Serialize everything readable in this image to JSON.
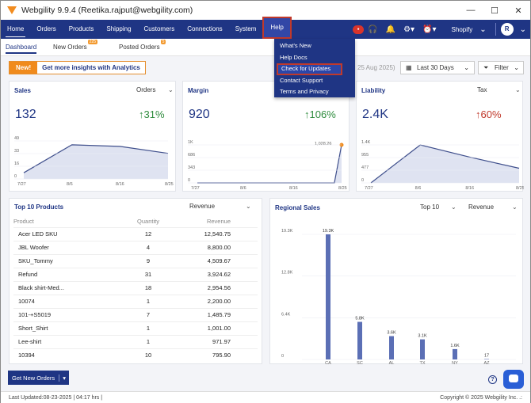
{
  "window": {
    "title": "Webgility 9.9.4 (Reetika.rajput@webgility.com)",
    "minimize": "—",
    "maximize": "☐",
    "close": "✕"
  },
  "nav": {
    "items": [
      "Home",
      "Orders",
      "Products",
      "Shipping",
      "Customers",
      "Connections",
      "System",
      "Help"
    ],
    "store": "Shopify",
    "avatar": "R"
  },
  "help_menu": [
    "What's New",
    "Help Docs",
    "Check for Updates",
    "Contact Support",
    "Terms and Privacy"
  ],
  "subtabs": {
    "dashboard": "Dashboard",
    "new_orders": "New Orders",
    "new_orders_count": "225",
    "posted_orders": "Posted Orders",
    "posted_orders_count": "5"
  },
  "promo": {
    "tag": "New!",
    "text": "Get more insights with Analytics"
  },
  "date_fragment": "25 Aug 2025)",
  "date_range": "Last 30 Days",
  "filter": "Filter",
  "cards": {
    "sales": {
      "title": "Sales",
      "select": "Orders",
      "value": "132",
      "delta": "31%",
      "direction": "up"
    },
    "margin": {
      "title": "Margin",
      "value": "920",
      "delta": "106%",
      "direction": "up",
      "point_label": "1,028.26"
    },
    "liability": {
      "title": "Liability",
      "select": "Tax",
      "value": "2.4K",
      "delta": "60%",
      "direction": "down"
    }
  },
  "chart_data": [
    {
      "type": "area",
      "title": "Sales",
      "x_ticks": [
        "7/27",
        "8/6",
        "8/16",
        "8/25"
      ],
      "y_ticks": [
        "49",
        "33",
        "16",
        "0"
      ],
      "values": [
        8,
        44,
        42,
        33
      ]
    },
    {
      "type": "area",
      "title": "Margin",
      "x_ticks": [
        "7/27",
        "8/6",
        "8/16",
        "8/25"
      ],
      "y_ticks": [
        "1K",
        "686",
        "343",
        "0"
      ],
      "values": [
        0,
        0,
        0,
        0,
        0,
        0,
        0,
        0,
        0,
        0,
        0,
        0,
        0,
        0,
        0,
        0,
        0,
        0,
        0,
        0,
        1028.26
      ]
    },
    {
      "type": "area",
      "title": "Liability",
      "x_ticks": [
        "7/27",
        "8/6",
        "8/16",
        "8/25"
      ],
      "y_ticks": [
        "1.4K",
        "955",
        "477",
        "0"
      ],
      "values": [
        0,
        1400,
        950,
        540
      ]
    },
    {
      "type": "bar",
      "title": "Regional Sales",
      "categories": [
        "CA",
        "SC",
        "AL",
        "TX",
        "NY",
        "AZ"
      ],
      "values": [
        19300,
        5800,
        3600,
        3100,
        1600,
        17
      ],
      "value_labels": [
        "19.3K",
        "5.8K",
        "3.6K",
        "3.1K",
        "1.6K",
        "17"
      ],
      "y_ticks": [
        "19.3K",
        "12.8K",
        "6.4K",
        "0"
      ],
      "color": "#5b6fb5"
    }
  ],
  "top_products": {
    "title": "Top 10 Products",
    "select": "Revenue",
    "columns": [
      "Product",
      "Quantity",
      "Revenue"
    ],
    "rows": [
      [
        "Acer LED SKU",
        "12",
        "12,540.75"
      ],
      [
        "JBL Woofer",
        "4",
        "8,800.00"
      ],
      [
        "SKU_Tommy",
        "9",
        "4,509.67"
      ],
      [
        "Refund",
        "31",
        "3,924.62"
      ],
      [
        "Black shirt-Med...",
        "18",
        "2,954.56"
      ],
      [
        "10074",
        "1",
        "2,200.00"
      ],
      [
        "101-+S5019",
        "7",
        "1,485.79"
      ],
      [
        "Short_Shirt",
        "1",
        "1,001.00"
      ],
      [
        "Lee-shirt",
        "1",
        "971.97"
      ],
      [
        "10394",
        "10",
        "795.90"
      ]
    ]
  },
  "regional": {
    "title": "Regional Sales",
    "select1": "Top 10",
    "select2": "Revenue"
  },
  "get_orders": "Get New Orders",
  "footer": {
    "last_updated": "Last Updated:08-23-2025 | 04:17 hrs |",
    "copyright": "Copyright © 2025 Webgility Inc. .:"
  },
  "colors": {
    "nav": "#1f3584",
    "accent": "#f08b1d",
    "up": "#2e8b3d",
    "down": "#c0392b",
    "chart_fill": "#dfe3f1",
    "chart_line": "#3f4f8c"
  }
}
